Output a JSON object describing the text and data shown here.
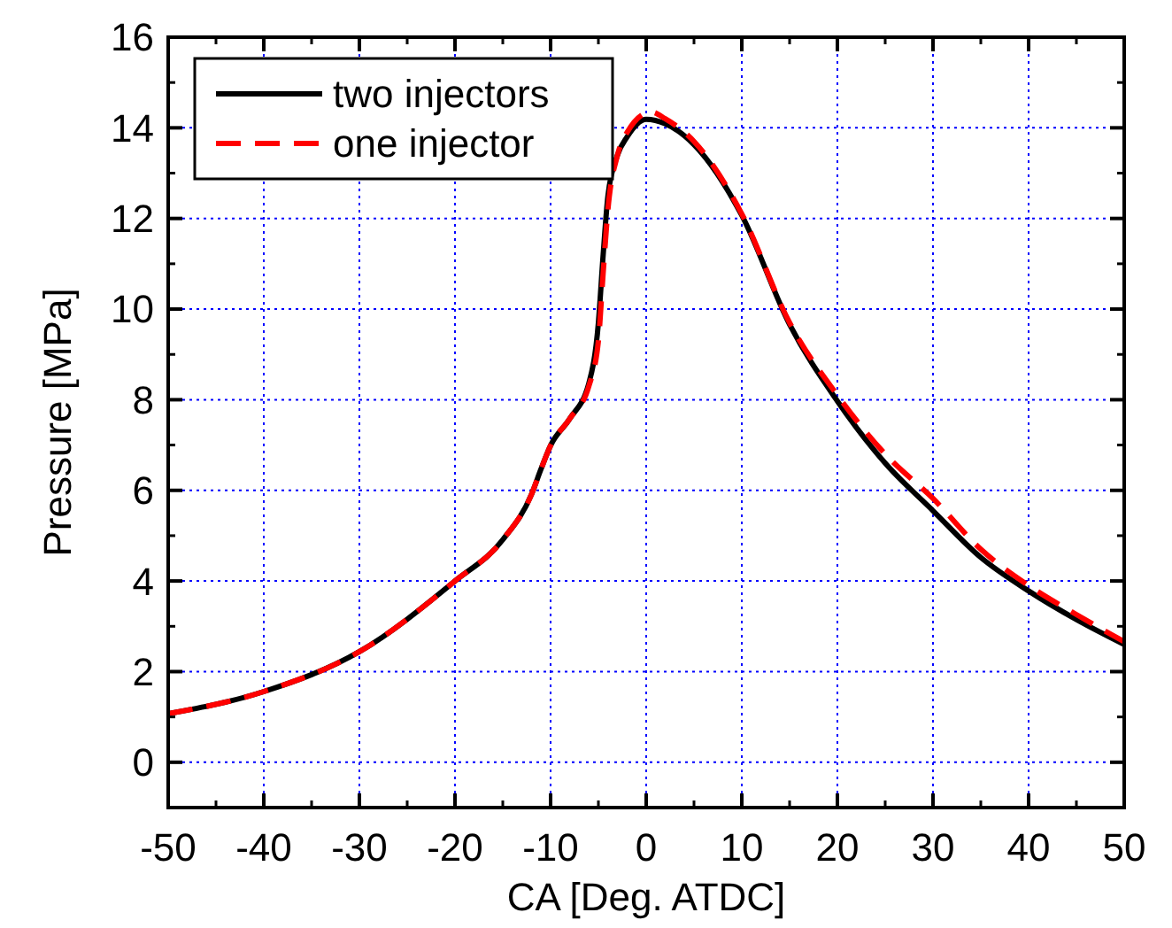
{
  "chart_data": {
    "type": "line",
    "xlabel": "CA [Deg. ATDC]",
    "ylabel": "Pressure [MPa]",
    "xlim": [
      -50,
      50
    ],
    "ylim": [
      -1,
      16
    ],
    "xticks": [
      -50,
      -40,
      -30,
      -20,
      -10,
      0,
      10,
      20,
      30,
      40,
      50
    ],
    "yticks": [
      0,
      2,
      4,
      6,
      8,
      10,
      12,
      14,
      16
    ],
    "grid": true,
    "legend": "top left",
    "series": [
      {
        "name": "two injectors",
        "color": "#000000",
        "line_style": "solid",
        "x": [
          -50,
          -40,
          -30,
          -20,
          -15,
          -12,
          -11,
          -10,
          -8,
          -6,
          -5,
          -4.5,
          -4,
          -3,
          -2,
          0,
          2,
          5,
          10,
          15,
          20,
          25,
          30,
          35,
          40,
          45,
          50
        ],
        "values": [
          1.07,
          1.56,
          2.44,
          4.0,
          4.91,
          5.91,
          6.47,
          6.99,
          7.58,
          8.36,
          9.7,
          11.2,
          12.5,
          13.4,
          13.8,
          14.19,
          14.09,
          13.63,
          12.07,
          9.66,
          7.97,
          6.6,
          5.55,
          4.52,
          3.78,
          3.15,
          2.6
        ]
      },
      {
        "name": "one injector",
        "color": "#ff0000",
        "line_style": "dashed",
        "x": [
          -50,
          -40,
          -30,
          -20,
          -15,
          -12,
          -11,
          -10,
          -8,
          -6,
          -5,
          -4.5,
          -4,
          -3,
          -2,
          0.5,
          2,
          5,
          10,
          15,
          20,
          25,
          30,
          35,
          40,
          45,
          50
        ],
        "values": [
          1.07,
          1.56,
          2.44,
          4.0,
          4.91,
          5.91,
          6.47,
          6.99,
          7.58,
          8.3,
          9.3,
          10.8,
          12.2,
          13.4,
          13.9,
          14.35,
          14.2,
          13.7,
          12.1,
          9.7,
          8.1,
          6.8,
          5.82,
          4.7,
          3.9,
          3.26,
          2.66
        ]
      }
    ]
  }
}
